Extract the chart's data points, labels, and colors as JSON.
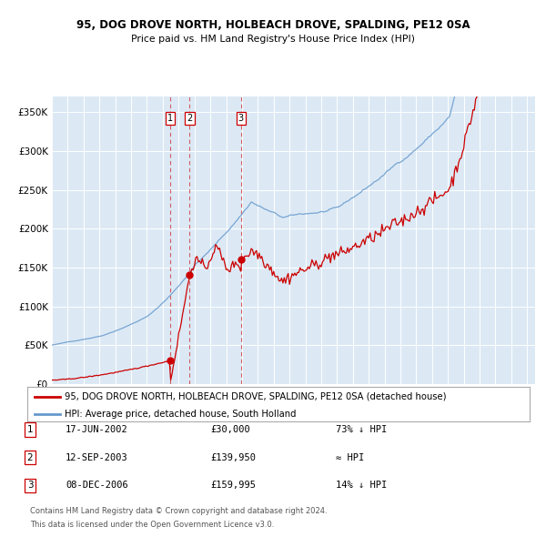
{
  "title": "95, DOG DROVE NORTH, HOLBEACH DROVE, SPALDING, PE12 0SA",
  "subtitle": "Price paid vs. HM Land Registry's House Price Index (HPI)",
  "legend_line1": "95, DOG DROVE NORTH, HOLBEACH DROVE, SPALDING, PE12 0SA (detached house)",
  "legend_line2": "HPI: Average price, detached house, South Holland",
  "transactions": [
    {
      "num": 1,
      "date": "17-JUN-2002",
      "price": 30000,
      "note": "73% ↓ HPI",
      "date_decimal": 2002.46
    },
    {
      "num": 2,
      "date": "12-SEP-2003",
      "price": 139950,
      "note": "≈ HPI",
      "date_decimal": 2003.7
    },
    {
      "num": 3,
      "date": "08-DEC-2006",
      "price": 159995,
      "note": "14% ↓ HPI",
      "date_decimal": 2006.94
    }
  ],
  "footer1": "Contains HM Land Registry data © Crown copyright and database right 2024.",
  "footer2": "This data is licensed under the Open Government Licence v3.0.",
  "bg_color": "#dce9f5",
  "red_color": "#cc0000",
  "blue_color": "#6699cc",
  "xmin": 1995.0,
  "xmax": 2025.5,
  "ymin": 0,
  "ymax": 370000,
  "yticks": [
    0,
    50000,
    100000,
    150000,
    200000,
    250000,
    300000,
    350000
  ]
}
